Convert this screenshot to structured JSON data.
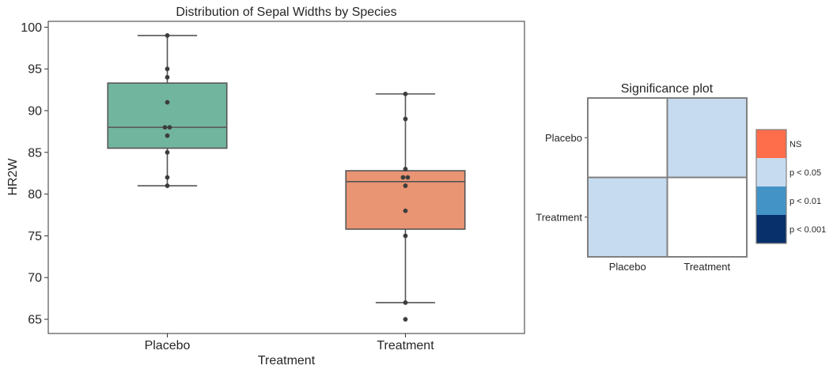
{
  "chart_data": [
    {
      "type": "box",
      "title": "Distribution of Sepal Widths by Species",
      "xlabel": "Treatment",
      "ylabel": "HR2W",
      "ylim": [
        63.3,
        100.7
      ],
      "yticks": [
        65,
        70,
        75,
        80,
        85,
        90,
        95,
        100
      ],
      "categories": [
        "Placebo",
        "Treatment"
      ],
      "boxes": [
        {
          "name": "Placebo",
          "color": "#72b59f",
          "whisker_low": 81,
          "q1": 85.5,
          "median": 88,
          "q3": 93.3,
          "whisker_high": 99
        },
        {
          "name": "Treatment",
          "color": "#e99574",
          "whisker_low": 67,
          "q1": 75.8,
          "median": 81.5,
          "q3": 82.8,
          "whisker_high": 92
        }
      ],
      "points": [
        {
          "category": "Placebo",
          "values": [
            99,
            95,
            94,
            91,
            88,
            88,
            87,
            85,
            82,
            81
          ]
        },
        {
          "category": "Treatment",
          "values": [
            92,
            89,
            83,
            82,
            82,
            81,
            78,
            75,
            67,
            65
          ]
        }
      ],
      "grid": false
    },
    {
      "type": "heatmap",
      "title": "Significance plot",
      "rows": [
        "Placebo",
        "Treatment"
      ],
      "cols": [
        "Placebo",
        "Treatment"
      ],
      "cells": [
        [
          "",
          "p < 0.05"
        ],
        [
          "p < 0.05",
          ""
        ]
      ],
      "legend": {
        "position": "right",
        "entries": [
          {
            "label": "NS",
            "color": "#ff6e4b"
          },
          {
            "label": "p < 0.05",
            "color": "#c6dbef"
          },
          {
            "label": "p < 0.01",
            "color": "#4393c6"
          },
          {
            "label": "p < 0.001",
            "color": "#08306b"
          }
        ]
      }
    }
  ],
  "colors": {
    "box_edge": "#555555",
    "point": "#3d3d3d",
    "empty_cell": "#ffffff",
    "grid_line": "#808080"
  }
}
